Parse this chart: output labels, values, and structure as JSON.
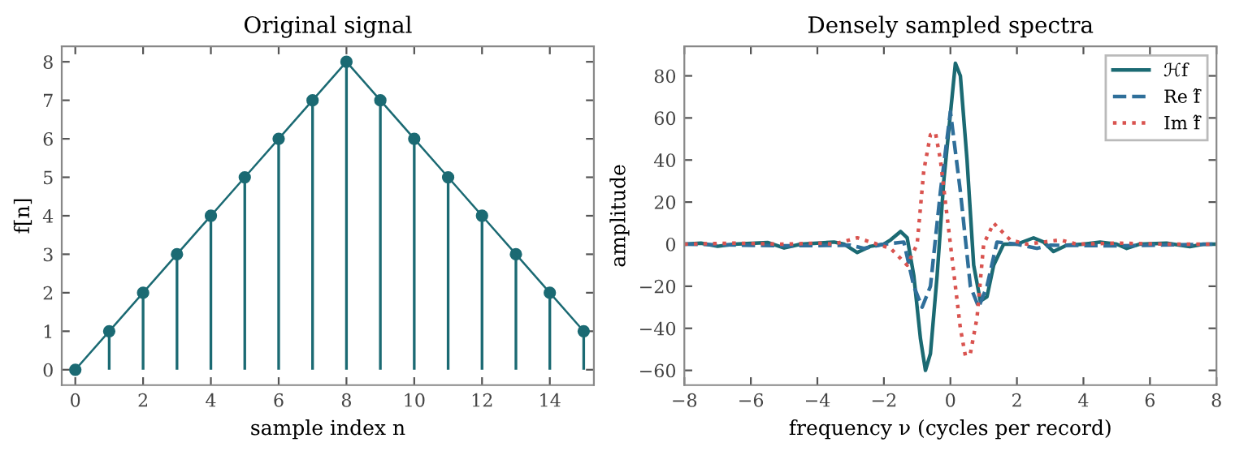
{
  "chart_data": [
    {
      "type": "lollipop",
      "title": "Original signal",
      "xlabel": "sample index n",
      "ylabel": "f[n]",
      "x": [
        0,
        1,
        2,
        3,
        4,
        5,
        6,
        7,
        8,
        9,
        10,
        11,
        12,
        13,
        14,
        15
      ],
      "xlim": [
        -0.4,
        15.3
      ],
      "ylim": [
        -0.4,
        8.4
      ],
      "xticks": [
        0,
        2,
        4,
        6,
        8,
        10,
        12,
        14
      ],
      "yticks": [
        0,
        1,
        2,
        3,
        4,
        5,
        6,
        7,
        8
      ],
      "grid": false,
      "legend": false,
      "series": [
        {
          "type": "lollipop",
          "color": "#1b6a73",
          "marker": "circle",
          "values": [
            0,
            1,
            2,
            3,
            4,
            5,
            6,
            7,
            8,
            7,
            6,
            5,
            4,
            3,
            2,
            1
          ]
        },
        {
          "type": "line",
          "color": "#1b6a73",
          "marker": "none",
          "line_style": "solid",
          "values": [
            0,
            1,
            2,
            3,
            4,
            5,
            6,
            7,
            8,
            7,
            6,
            5,
            4,
            3,
            2,
            1
          ]
        }
      ]
    },
    {
      "type": "line",
      "title": "Densely sampled spectra",
      "xlabel": "frequency ν (cycles per record)",
      "ylabel": "amplitude",
      "xlim": [
        -8,
        8
      ],
      "ylim": [
        -67,
        94
      ],
      "xticks": [
        -8,
        -6,
        -4,
        -2,
        0,
        2,
        4,
        6,
        8
      ],
      "yticks": [
        -60,
        -40,
        -20,
        0,
        20,
        40,
        60,
        80
      ],
      "grid": false,
      "legend": "top right",
      "marker": "none",
      "series": [
        {
          "name": "ℋf",
          "color": "#1b6a73",
          "line_style": "solid",
          "x": [
            -8,
            -7.5,
            -7,
            -6.5,
            -5.5,
            -5,
            -4.5,
            -3.5,
            -3.2,
            -2.8,
            -2.4,
            -2,
            -1.8,
            -1.5,
            -1.3,
            -1.1,
            -0.9,
            -0.75,
            -0.6,
            -0.4,
            -0.2,
            0,
            0.15,
            0.3,
            0.5,
            0.7,
            0.9,
            1.1,
            1.3,
            1.6,
            2,
            2.5,
            2.8,
            3.1,
            3.5,
            4,
            4.5,
            5,
            5.3,
            5.7,
            6.5,
            7.2,
            7.6,
            8
          ],
          "values": [
            0,
            0.5,
            -1,
            0,
            0.8,
            -1.8,
            0,
            1,
            0,
            -4,
            -1,
            0,
            2,
            6,
            3,
            -15,
            -45,
            -60,
            -52,
            -15,
            30,
            62,
            86,
            80,
            40,
            -10,
            -27,
            -25,
            -10,
            0,
            0,
            3,
            1,
            -3.5,
            -0.5,
            0,
            1,
            0,
            -2,
            0,
            0.5,
            -1.2,
            0,
            0
          ]
        },
        {
          "name": "Re f̂",
          "color": "#2f6f9a",
          "line_style": "dashed",
          "x": [
            -8,
            -5,
            -3,
            -2.6,
            -2,
            -1.4,
            -1.1,
            -0.85,
            -0.6,
            -0.3,
            0,
            0.3,
            0.6,
            0.85,
            1.1,
            1.4,
            2,
            2.6,
            3,
            5,
            8
          ],
          "values": [
            0,
            -0.8,
            -0.5,
            -2,
            0,
            1,
            -20,
            -30,
            -20,
            25,
            63,
            25,
            -20,
            -30,
            -20,
            1,
            0,
            -2,
            -0.5,
            -0.8,
            0
          ]
        },
        {
          "name": "Im f̂",
          "color": "#d9534f",
          "line_style": "dotted",
          "x": [
            -8,
            -6.5,
            -5,
            -4,
            -3.5,
            -2.8,
            -2.3,
            -1.8,
            -1.3,
            -1.0,
            -0.8,
            -0.6,
            -0.45,
            -0.3,
            0,
            0.3,
            0.45,
            0.6,
            0.8,
            1.0,
            1.3,
            1.8,
            2.3,
            3.3,
            3.8,
            5,
            6.5,
            8
          ],
          "values": [
            0,
            0.5,
            0,
            0.5,
            0,
            3,
            0.5,
            -2,
            -10,
            0,
            35,
            52,
            53,
            40,
            0,
            -40,
            -53,
            -52,
            -35,
            0,
            10,
            2,
            0,
            2,
            0,
            0.5,
            0,
            0
          ]
        }
      ]
    }
  ]
}
